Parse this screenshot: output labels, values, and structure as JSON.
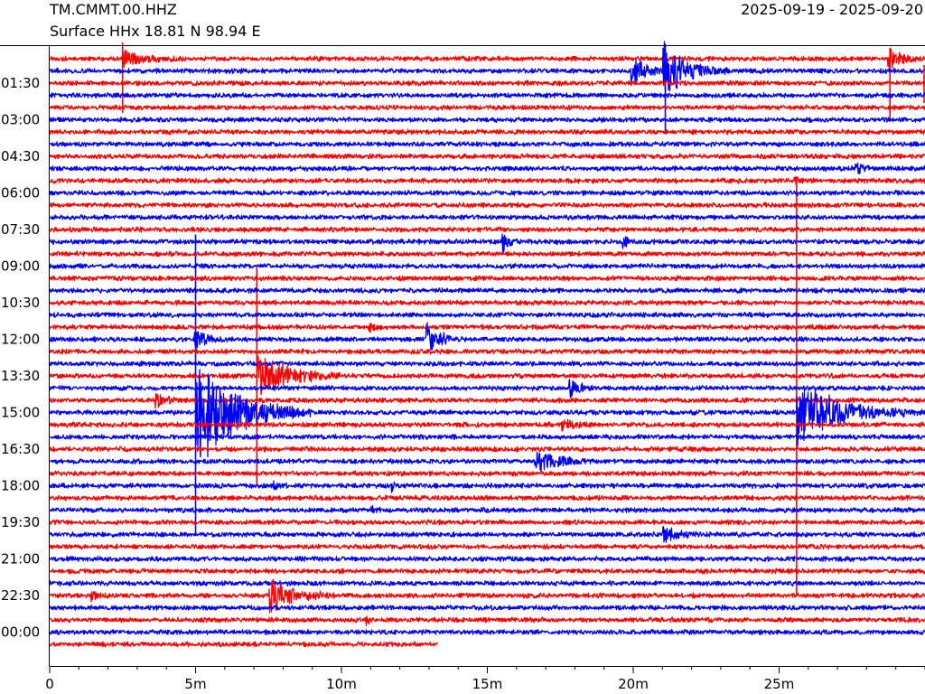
{
  "header": {
    "station": "TM.CMMT.00.HHZ",
    "subtitle": "Surface HHx  18.81 N 98.94 E",
    "date_range": "2025-09-19 - 2025-09-20"
  },
  "chart_data": {
    "type": "line",
    "title": "TM.CMMT.00.HHZ",
    "subtitle": "Surface HHx  18.81 N 98.94 E",
    "date_range": "2025-09-19 - 2025-09-20",
    "xlabel": "",
    "ylabel": "",
    "x_unit": "minutes",
    "xlim": [
      0,
      30
    ],
    "x_ticks": [
      {
        "value": 0,
        "label": "0"
      },
      {
        "value": 5,
        "label": "5m"
      },
      {
        "value": 10,
        "label": "10m"
      },
      {
        "value": 15,
        "label": "15m"
      },
      {
        "value": 20,
        "label": "20m"
      },
      {
        "value": 25,
        "label": "25m"
      }
    ],
    "x_minor_step": 1,
    "y_ticks": [
      "01:30",
      "03:00",
      "04:30",
      "06:00",
      "07:30",
      "09:00",
      "10:30",
      "12:00",
      "13:30",
      "15:00",
      "16:30",
      "18:00",
      "19:30",
      "21:00",
      "22:30",
      "00:00"
    ],
    "trace_count": 49,
    "trace_minutes": 30,
    "colors": [
      "#ff0000",
      "#0000ff"
    ],
    "grid": false,
    "last_trace_end_min": 13.3,
    "events": [
      {
        "trace": 0,
        "t": 2.5,
        "amp": 12,
        "dur": 1.8
      },
      {
        "trace": 0,
        "t": 28.7,
        "amp": 16,
        "dur": 1.3
      },
      {
        "trace": 1,
        "t": 19.9,
        "amp": 22,
        "dur": 1.4
      },
      {
        "trace": 1,
        "t": 21.0,
        "amp": 38,
        "dur": 2.2
      },
      {
        "trace": 9,
        "t": 27.6,
        "amp": 10,
        "dur": 0.8
      },
      {
        "trace": 10,
        "t": 25.5,
        "amp": 6,
        "dur": 0.5
      },
      {
        "trace": 15,
        "t": 15.5,
        "amp": 14,
        "dur": 0.6
      },
      {
        "trace": 15,
        "t": 19.6,
        "amp": 14,
        "dur": 0.4
      },
      {
        "trace": 22,
        "t": 10.9,
        "amp": 8,
        "dur": 0.5
      },
      {
        "trace": 23,
        "t": 12.9,
        "amp": 20,
        "dur": 1.4
      },
      {
        "trace": 23,
        "t": 4.9,
        "amp": 18,
        "dur": 1.2
      },
      {
        "trace": 26,
        "t": 7.1,
        "amp": 32,
        "dur": 3.0
      },
      {
        "trace": 27,
        "t": 17.8,
        "amp": 14,
        "dur": 0.9
      },
      {
        "trace": 28,
        "t": 3.6,
        "amp": 10,
        "dur": 1.0
      },
      {
        "trace": 29,
        "t": 5.0,
        "amp": 70,
        "dur": 4.0
      },
      {
        "trace": 29,
        "t": 25.6,
        "amp": 40,
        "dur": 4.3
      },
      {
        "trace": 30,
        "t": 17.5,
        "amp": 9,
        "dur": 1.3
      },
      {
        "trace": 33,
        "t": 16.6,
        "amp": 16,
        "dur": 2.2
      },
      {
        "trace": 35,
        "t": 7.6,
        "amp": 6,
        "dur": 0.6
      },
      {
        "trace": 35,
        "t": 11.7,
        "amp": 7,
        "dur": 0.4
      },
      {
        "trace": 37,
        "t": 11.0,
        "amp": 6,
        "dur": 0.4
      },
      {
        "trace": 39,
        "t": 21.0,
        "amp": 14,
        "dur": 1.3
      },
      {
        "trace": 44,
        "t": 7.5,
        "amp": 24,
        "dur": 2.3
      },
      {
        "trace": 44,
        "t": 1.4,
        "amp": 9,
        "dur": 0.5
      },
      {
        "trace": 46,
        "t": 10.8,
        "amp": 12,
        "dur": 0.3
      }
    ],
    "spikes": [
      {
        "trace": 0,
        "t": 2.5,
        "up": 18,
        "down": 60
      },
      {
        "trace": 0,
        "t": 28.8,
        "up": 12,
        "down": 70
      },
      {
        "trace": 1,
        "t": 21.1,
        "up": 30,
        "down": 70
      },
      {
        "trace": 2,
        "t": 30.0,
        "up": 20,
        "down": 22
      },
      {
        "trace": 15,
        "t": 5.0,
        "up": 8,
        "down": 325
      },
      {
        "trace": 18,
        "t": 7.1,
        "up": 12,
        "down": 230
      },
      {
        "trace": 10,
        "t": 25.6,
        "up": 2,
        "down": 460
      }
    ]
  }
}
